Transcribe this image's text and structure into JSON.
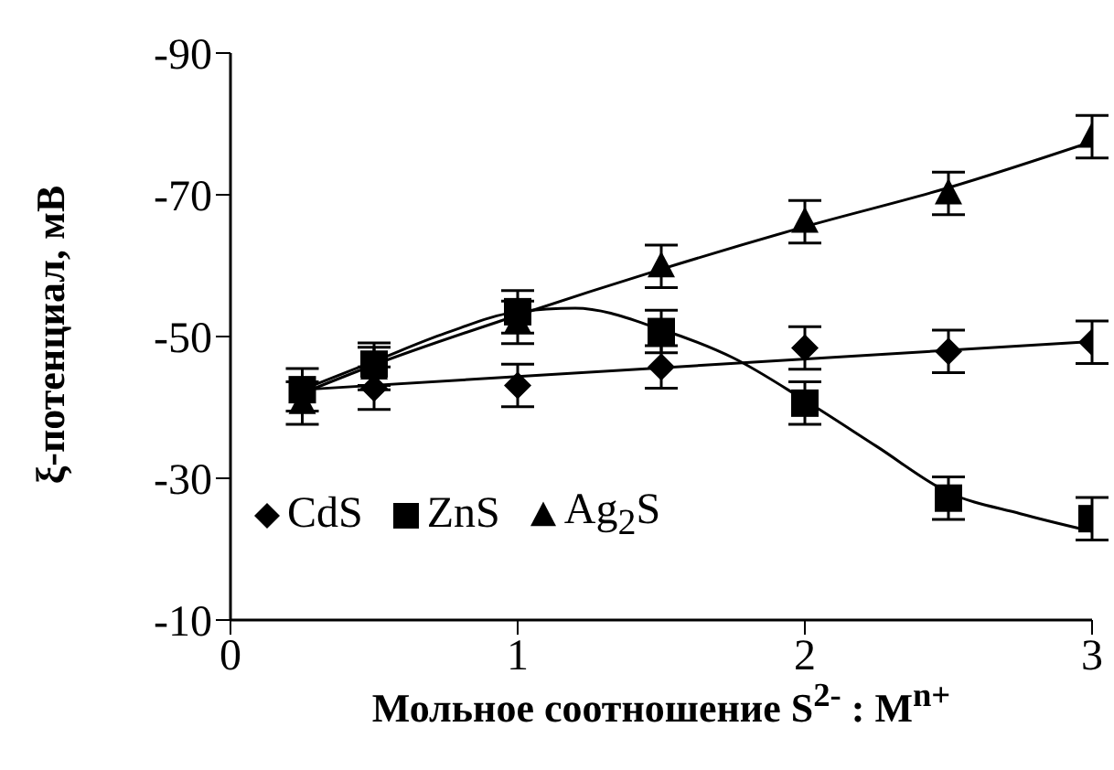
{
  "chart_data": {
    "type": "scatter",
    "xlabel": "Мольное соотношение S$^{2-}$ : M$^{n+}$",
    "ylabel": "ξ-потенциал, мВ",
    "x": [
      0.25,
      0.5,
      1,
      1.5,
      2,
      2.5,
      3
    ],
    "xlim": [
      0,
      3
    ],
    "xticks": [
      0,
      1,
      2,
      3
    ],
    "ylim": [
      -10,
      -90
    ],
    "yticks": [
      -90,
      -70,
      -50,
      -30,
      -10
    ],
    "grid": false,
    "legend": "bottom left",
    "series": [
      {
        "name": "CdS",
        "color": "#000000",
        "marker": "diamond",
        "values": [
          null,
          -42.7,
          -43.1,
          -45.7,
          -48.4,
          -47.9,
          -49.2
        ],
        "errors": [
          null,
          3,
          3,
          3,
          3,
          3,
          3
        ]
      },
      {
        "name": "ZnS",
        "color": "#000000",
        "marker": "square",
        "values": [
          -42.5,
          -46.1,
          -53.5,
          -50.7,
          -40.6,
          -27.2,
          -24.3
        ],
        "errors": [
          3,
          3,
          3,
          3,
          3,
          3,
          3
        ]
      },
      {
        "name": "Ag$_{2}$S",
        "color": "#000000",
        "marker": "triangle",
        "values": [
          -40.6,
          -45.5,
          -52,
          -59.9,
          -66.2,
          -70.2,
          -78.2
        ],
        "errors": [
          3,
          3,
          3,
          3,
          3,
          3,
          3
        ]
      },
      {
        "type": "line",
        "color": "#000000",
        "x": [
          0.25,
          3
        ],
        "values": [
          -42.5,
          -49.3
        ]
      },
      {
        "type": "line",
        "color": "#000000",
        "x": [
          0.25,
          0.5,
          0.75,
          1,
          1.2,
          1.5,
          1.75,
          2,
          2.25,
          2.5,
          2.75,
          3
        ],
        "values": [
          -42.5,
          -46.5,
          -50.5,
          -53.5,
          -54,
          -51,
          -47,
          -41,
          -34.5,
          -28,
          -25,
          -22.5
        ]
      },
      {
        "type": "line",
        "color": "#000000",
        "x": [
          0.25,
          0.5,
          1,
          1.5,
          2,
          2.5,
          3
        ],
        "values": [
          -42,
          -46,
          -53,
          -59.5,
          -65.5,
          -71,
          -77.5
        ]
      }
    ]
  }
}
